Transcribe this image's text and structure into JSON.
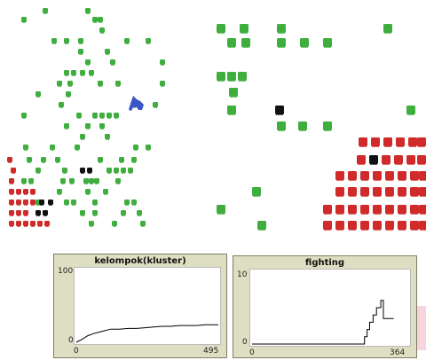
{
  "world": {
    "colors": {
      "green": "#3fae3f",
      "red": "#d02a2a",
      "black": "#111111",
      "wolf": "#3a56c8"
    },
    "icons": {
      "sheep": "sheep-icon",
      "wolf": "wolf-icon"
    }
  },
  "plots": {
    "cluster": {
      "title": "kelompok(kluster)",
      "y_max": "100",
      "y_min": "0",
      "x_min": "0",
      "x_max": "495",
      "chart_data": {
        "type": "line",
        "xlim": [
          0,
          495
        ],
        "ylim": [
          0,
          100
        ],
        "x": [
          0,
          20,
          40,
          60,
          80,
          100,
          120,
          150,
          180,
          210,
          240,
          270,
          300,
          330,
          360,
          390,
          420,
          450,
          480,
          495
        ],
        "y": [
          0,
          4,
          9,
          12,
          14,
          16,
          18,
          18,
          19,
          19,
          20,
          21,
          22,
          22,
          23,
          23,
          23,
          24,
          24,
          24
        ]
      }
    },
    "fighting": {
      "title": "fighting",
      "y_max": "10",
      "y_min": "0",
      "x_min": "0",
      "x_max": "364",
      "chart_data": {
        "type": "line",
        "xlim": [
          0,
          364
        ],
        "ylim": [
          0,
          10
        ],
        "x": [
          0,
          255,
          262,
          262,
          268,
          268,
          274,
          274,
          282,
          282,
          290,
          290,
          300,
          300,
          306,
          306,
          330
        ],
        "y": [
          0,
          0,
          0,
          1,
          1,
          2,
          2,
          3,
          3,
          4,
          4,
          5,
          5,
          6,
          6,
          3.5,
          3.5
        ]
      }
    }
  }
}
